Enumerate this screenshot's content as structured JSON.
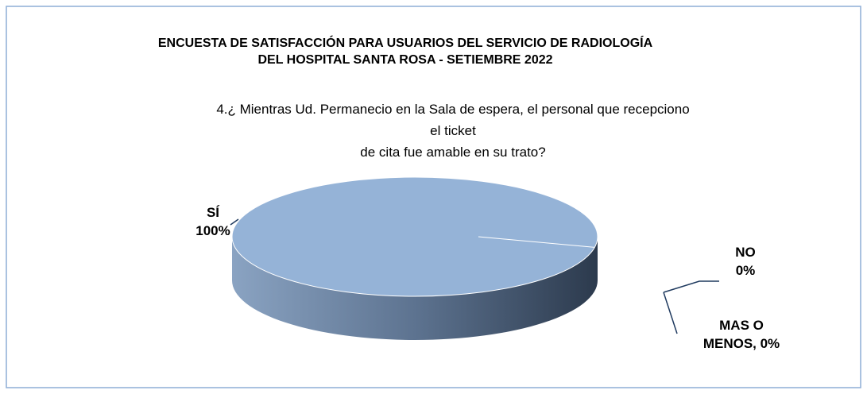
{
  "chart_data": {
    "type": "pie3d",
    "title": "ENCUESTA DE SATISFACCIÓN PARA USUARIOS DEL SERVICIO DE RADIOLOGÍA\nDEL HOSPITAL SANTA ROSA - SETIEMBRE 2022",
    "subtitle": "4.¿ Mientras Ud. Permanecio en la Sala de espera, el personal que recepciono el ticket\nde cita fue amable en su trato?",
    "values": [
      100,
      0,
      0
    ],
    "value_labels": [
      "SÍ\n100%",
      "NO\n0%",
      "MAS O\nMENOS, 0%"
    ],
    "colors": [
      "#95b3d7",
      "#1f3a5f",
      "#7f7f7f"
    ]
  }
}
